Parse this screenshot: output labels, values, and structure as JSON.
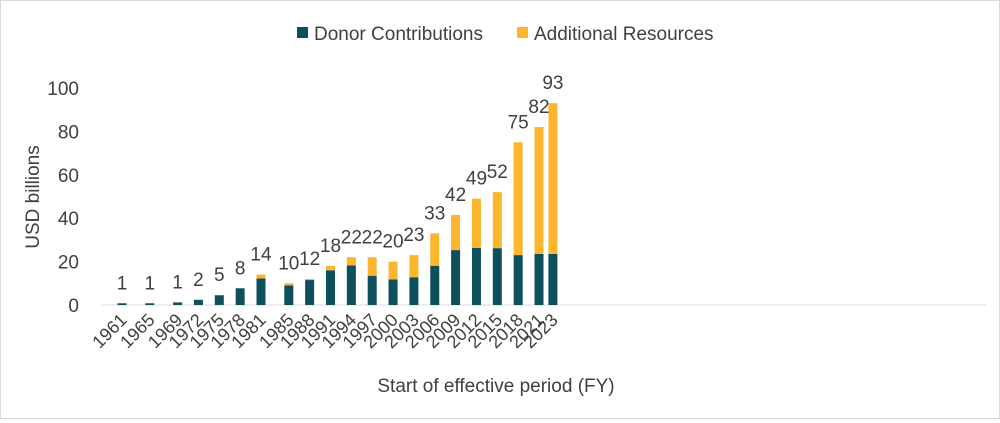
{
  "chart_data": {
    "type": "bar",
    "stacked": true,
    "title": "",
    "xlabel": "Start of effective period (FY)",
    "ylabel": "USD billions",
    "ylim": [
      0,
      100
    ],
    "yticks": [
      0,
      20,
      40,
      60,
      80,
      100
    ],
    "grid": false,
    "legend": "top-center",
    "categories": [
      "1961",
      "1965",
      "1969",
      "1972",
      "1975",
      "1978",
      "1981",
      "1985",
      "1988",
      "1991",
      "1994",
      "1997",
      "2000",
      "2003",
      "2006",
      "2009",
      "2012",
      "2015",
      "2018",
      "2021",
      "2023"
    ],
    "series": [
      {
        "name": "Donor Contributions",
        "color": "#0e4f5c",
        "values": [
          0.8,
          0.8,
          1.2,
          2.4,
          4.5,
          7.7,
          12.2,
          9.0,
          11.5,
          16.0,
          18.2,
          13.5,
          11.8,
          12.8,
          18.1,
          25.3,
          26.3,
          26.2,
          23.0,
          23.5,
          23.5
        ]
      },
      {
        "name": "Additional Resources",
        "color": "#fbb62e",
        "values": [
          0.0,
          0.0,
          0.0,
          0.0,
          0.0,
          0.0,
          1.8,
          1.0,
          0.5,
          2.0,
          3.8,
          8.5,
          8.2,
          10.2,
          14.9,
          16.2,
          22.7,
          25.8,
          52.0,
          58.5,
          69.5
        ]
      }
    ],
    "totals_labels": [
      "1",
      "1",
      "1",
      "2",
      "5",
      "8",
      "14",
      "10",
      "12",
      "18",
      "22",
      "22",
      "20",
      "23",
      "33",
      "42",
      "49",
      "52",
      "75",
      "82",
      "93"
    ]
  }
}
